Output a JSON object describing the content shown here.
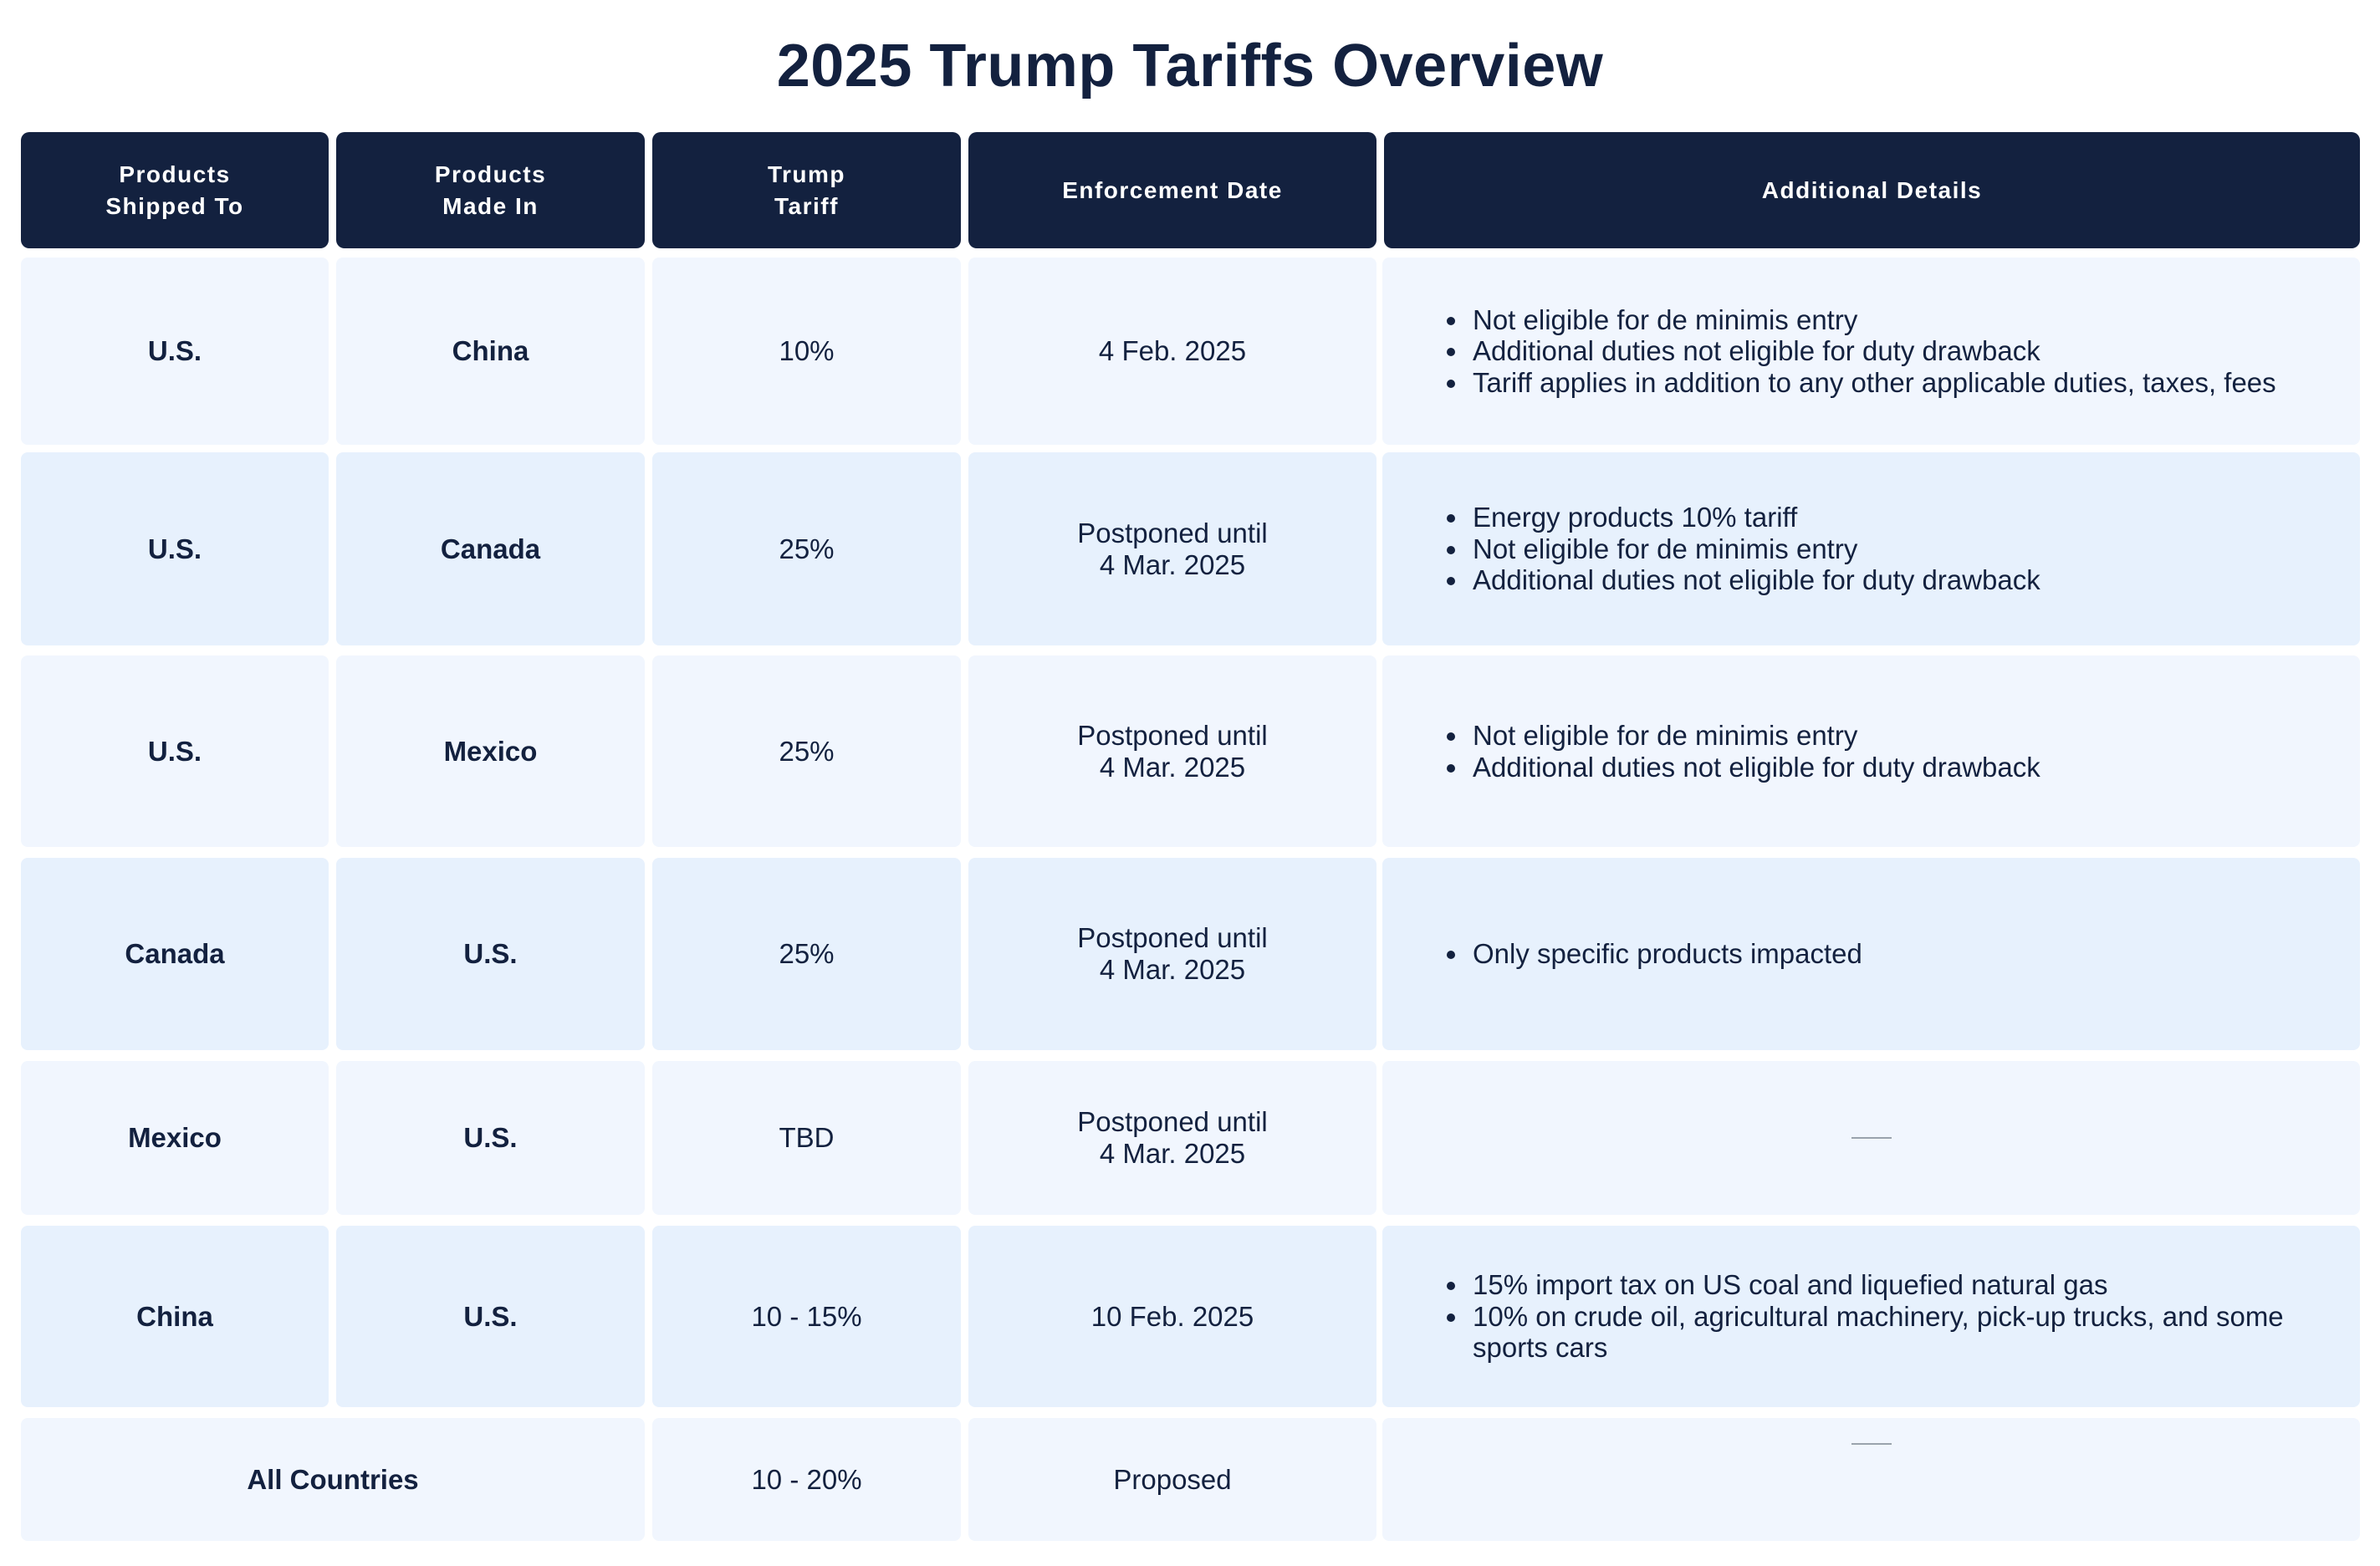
{
  "title": "2025 Trump Tariffs Overview",
  "headers": {
    "shipped_to": "Products\nShipped To",
    "made_in": "Products\nMade In",
    "tariff": "Trump\nTariff",
    "date": "Enforcement Date",
    "details": "Additional Details"
  },
  "rows": [
    {
      "shipped_to": "U.S.",
      "made_in": "China",
      "tariff": "10%",
      "date": "4 Feb. 2025",
      "details": [
        "Not eligible for de minimis entry",
        "Additional duties not eligible for duty drawback",
        "Tariff applies in addition to any other applicable duties, taxes, fees"
      ]
    },
    {
      "shipped_to": "U.S.",
      "made_in": "Canada",
      "tariff": "25%",
      "date": "Postponed until\n4 Mar. 2025",
      "details": [
        "Energy products 10% tariff",
        "Not eligible for de minimis entry",
        "Additional duties not eligible for duty drawback"
      ]
    },
    {
      "shipped_to": "U.S.",
      "made_in": "Mexico",
      "tariff": "25%",
      "date": "Postponed until\n4 Mar. 2025",
      "details": [
        "Not eligible for de minimis entry",
        "Additional duties not eligible for duty drawback"
      ]
    },
    {
      "shipped_to": "Canada",
      "made_in": "U.S.",
      "tariff": "25%",
      "date": "Postponed until\n4 Mar. 2025",
      "details": [
        "Only specific products impacted"
      ]
    },
    {
      "shipped_to": "Mexico",
      "made_in": "U.S.",
      "tariff": "TBD",
      "date": "Postponed until\n4 Mar. 2025",
      "details": []
    },
    {
      "shipped_to": "China",
      "made_in": "U.S.",
      "tariff": "10 - 15%",
      "date": "10 Feb. 2025",
      "details": [
        "15% import tax on US coal and liquefied natural gas",
        "10% on crude oil, agricultural machinery, pick-up trucks, and some sports cars"
      ]
    },
    {
      "shipped_to": "All Countries",
      "made_in": "",
      "tariff": "10 - 20%",
      "date": "Proposed",
      "details": []
    }
  ]
}
